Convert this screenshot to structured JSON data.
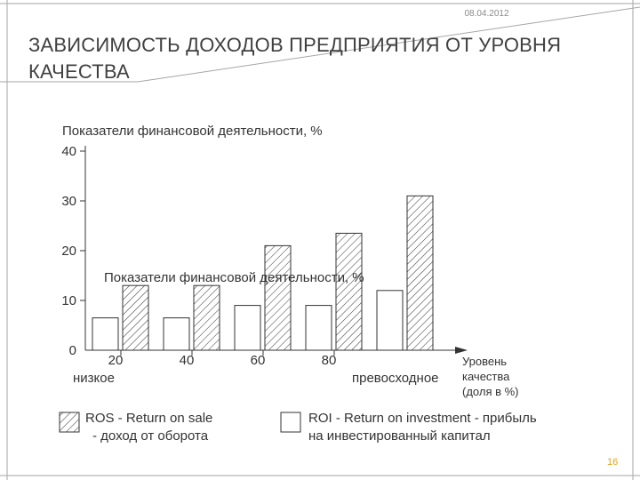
{
  "date": "08.04.2012",
  "title": "ЗАВИСИМОСТЬ ДОХОДОВ ПРЕДПРИЯТИЯ ОТ УРОВНЯ КАЧЕСТВА",
  "page_number": "16",
  "colors": {
    "accent": "#e0a21a",
    "border": "#a6a6a6",
    "ink": "#333333"
  },
  "chart_data": {
    "type": "bar",
    "y_label": "Показатели финансовой деятельности, %",
    "overlay_label": "Показатели финансовой деятельности, %",
    "x_label_lines": [
      "Уровень",
      "качества",
      "(доля в %)"
    ],
    "x_low_label": "низкое",
    "x_high_label": "превосходное",
    "x_ticks": [
      20,
      40,
      60,
      80
    ],
    "y_ticks": [
      0,
      10,
      20,
      30,
      40
    ],
    "ylim": [
      0,
      40
    ],
    "groups": [
      {
        "roi": 6.5,
        "ros": 13
      },
      {
        "roi": 6.5,
        "ros": 13
      },
      {
        "roi": 9,
        "ros": 21
      },
      {
        "roi": 9,
        "ros": 23.5
      },
      {
        "roi": 12,
        "ros": 31
      }
    ],
    "series": [
      {
        "key": "ros",
        "name_lines": [
          "ROS - Return on sale",
          "- доход от оборота"
        ],
        "fill": "hatch"
      },
      {
        "key": "roi",
        "name_lines": [
          "ROI - Return on investment - прибыль",
          "на инвестированный капитал"
        ],
        "fill": "white"
      }
    ]
  }
}
